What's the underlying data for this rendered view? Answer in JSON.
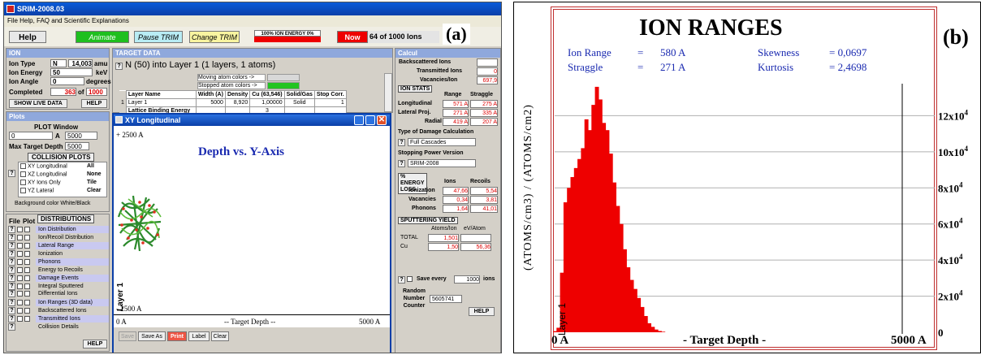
{
  "panel_a": {
    "title": "SRIM-2008.03",
    "menu": "File  Help, FAQ and Scientific Explanations",
    "label": "(a)",
    "toolbar": {
      "help": "Help",
      "animate": "Animate",
      "pause": "Pause TRIM",
      "change": "Change TRIM",
      "energy_pct": "100%  ION ENERGY  0%",
      "now": "Now",
      "count": "64 of 1000 Ions"
    },
    "ion": {
      "header": "ION",
      "type_label": "Ion Type",
      "type_value": "N",
      "mass_value": "14,003",
      "mass_unit": "amu",
      "energy_label": "Ion Energy",
      "energy_value": "50",
      "energy_unit": "keV",
      "angle_label": "Ion Angle",
      "angle_value": "0",
      "angle_unit": "degrees",
      "completed_label": "Completed",
      "completed_value": "363",
      "of_label": "of",
      "total_value": "1000",
      "show_live": "SHOW LIVE DATA",
      "help": "HELP"
    },
    "target": {
      "header": "TARGET DATA",
      "question": "?",
      "desc": "N (50) into Layer 1 (1 layers, 1 atoms)",
      "moving": "Moving atom colors ->",
      "stopped": "Stopped atom colors ->",
      "columns": [
        "Layer Name",
        "Width (A)",
        "Density",
        "Cu (63,546)",
        "Solid/Gas",
        "Stop Corr."
      ],
      "row_index": "1",
      "row": [
        "Layer 1",
        "5000",
        "8,920",
        "1,00000",
        "Solid",
        "1"
      ],
      "lattice": "Lattice Binding Energy",
      "lattice_value": "3"
    },
    "plots": {
      "header": "Plots",
      "window": "PLOT Window",
      "from": "0",
      "unit": "A",
      "to": "5000",
      "max_label": "Max Target Depth",
      "max_value": "5000",
      "collision_header": "COLLISION PLOTS",
      "items": [
        {
          "label": "XY Longitudinal",
          "action": "All"
        },
        {
          "label": "XZ Longitudinal",
          "action": "None"
        },
        {
          "label": "XY Ions Only",
          "action": "Tile"
        },
        {
          "label": "YZ Lateral",
          "action": "Clear"
        }
      ],
      "background": "Background color White/Black"
    },
    "distributions": {
      "file": "File",
      "plot": "Plot",
      "header": "DISTRIBUTIONS",
      "items": [
        "Ion Distribution",
        "Ion/Recoil Distribution",
        "Lateral Range",
        "Ionization",
        "Phonons",
        "Energy to Recoils",
        "Damage Events",
        "Integral      Sputtered",
        "Differential    Ions",
        "Ion Ranges (3D data)",
        "Backscattered Ions",
        "Transmitted Ions",
        "Collision Details"
      ],
      "help": "HELP"
    },
    "xy_window": {
      "title": "XY Longitudinal",
      "plot_title": "Depth vs. Y-Axis",
      "y_top": "+ 2500 A",
      "y_bottom": "- 2500 A",
      "layer": "Layer 1",
      "x_left": "0 A",
      "x_mid": "-- Target Depth --",
      "x_right": "5000 A",
      "buttons": [
        "Save",
        "Save As",
        "Print",
        "Label",
        "Clear"
      ]
    },
    "calc": {
      "header": "Calcul",
      "backscattered": "Backscattered Ions",
      "backscattered_value": "",
      "transmitted": "Transmitted Ions",
      "transmitted_value": "0",
      "vacancies": "Vacancies/Ion",
      "vacancies_value": "697,9",
      "ion_stats": "ION STATS",
      "range": "Range",
      "straggle": "Straggle",
      "stats": [
        {
          "label": "Longitudinal",
          "range": "571 A",
          "straggle": "275 A"
        },
        {
          "label": "Lateral Proj.",
          "range": "271 A",
          "straggle": "335 A"
        },
        {
          "label": "Radial",
          "range": "419 A",
          "straggle": "207 A"
        }
      ],
      "damage_label": "Type of Damage Calculation",
      "damage_value": "Full Cascades",
      "stopping_label": "Stopping Power Version",
      "stopping_value": "SRIM-2008",
      "energy_loss": "% ENERGY LOSS",
      "ions": "Ions",
      "recoils": "Recoils",
      "loss": [
        {
          "label": "Ionization",
          "ions": "47,66",
          "recoils": "5,54"
        },
        {
          "label": "Vacancies",
          "ions": "0,34",
          "recoils": "3,81"
        },
        {
          "label": "Phonons",
          "ions": "1,64",
          "recoils": "41,01"
        }
      ],
      "sputter_header": "SPUTTERING YIELD",
      "sputter_cols": [
        "Atoms/Ion",
        "eV/Atom"
      ],
      "sputter": [
        {
          "label": "TOTAL",
          "atoms": "1,501",
          "ev": ""
        },
        {
          "label": "Cu",
          "atoms": "1,50",
          "ev": "56,36"
        }
      ],
      "save_every": "Save every",
      "save_value": "1000",
      "save_unit": "ions",
      "random": "Random Number Counter",
      "random_value": "5605741",
      "help": "HELP"
    }
  },
  "panel_b": {
    "label": "(b)",
    "title": "ION RANGES",
    "stats": [
      {
        "label": "Ion Range",
        "eq": "=",
        "value": "580 A"
      },
      {
        "label": "Straggle",
        "eq": "=",
        "value": "271 A"
      },
      {
        "label": "Skewness",
        "eq": "= 0,0697",
        "value": ""
      },
      {
        "label": "Kurtosis",
        "eq": "= 2,4698",
        "value": ""
      }
    ],
    "ylabel": "(ATOMS/cm3) / (ATOMS/cm2)",
    "layer": "Layer 1",
    "xlabel": "- Target Depth -",
    "x_left": "0 A",
    "x_right": "5000 A"
  },
  "chart_data": {
    "type": "bar",
    "title": "ION RANGES",
    "xlabel": "- Target Depth -",
    "ylabel": "(ATOMS/cm3) / (ATOMS/cm2)",
    "xlim": [
      0,
      5000
    ],
    "ylim": [
      0,
      140000
    ],
    "x_tick_labels": [
      "0 A",
      "5000 A"
    ],
    "y_ticks": [
      {
        "base": "0",
        "exp": "",
        "value": 0
      },
      {
        "base": "2x10",
        "exp": "4",
        "value": 20000
      },
      {
        "base": "4x10",
        "exp": "4",
        "value": 40000
      },
      {
        "base": "6x10",
        "exp": "4",
        "value": 60000
      },
      {
        "base": "8x10",
        "exp": "4",
        "value": 80000
      },
      {
        "base": "10x10",
        "exp": "4",
        "value": 100000
      },
      {
        "base": "12x10",
        "exp": "4",
        "value": 120000
      }
    ],
    "color": "#ee0000",
    "x": [
      25,
      75,
      125,
      175,
      225,
      275,
      325,
      375,
      425,
      475,
      525,
      575,
      625,
      675,
      725,
      775,
      825,
      875,
      925,
      975,
      1025,
      1075,
      1125,
      1175,
      1225,
      1275,
      1325,
      1375,
      1425,
      1475,
      1525,
      1575
    ],
    "values": [
      600,
      2500,
      33000,
      72000,
      80000,
      86000,
      91000,
      96000,
      102000,
      118000,
      112000,
      126000,
      136000,
      129000,
      116000,
      112000,
      99000,
      83000,
      70000,
      60000,
      46000,
      36000,
      29000,
      24000,
      19000,
      14000,
      9000,
      5000,
      3000,
      1500,
      700,
      300
    ]
  }
}
